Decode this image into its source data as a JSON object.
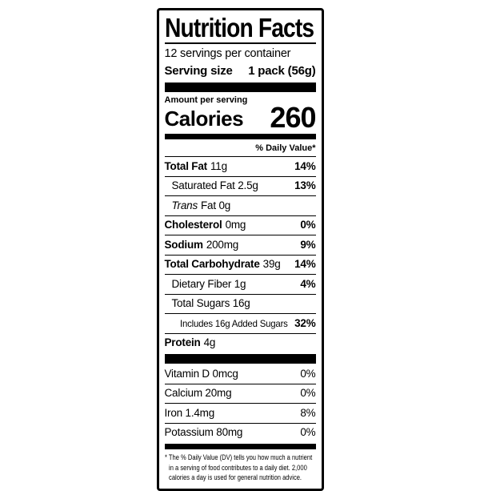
{
  "colors": {
    "ink": "#000000",
    "background": "#ffffff"
  },
  "label": {
    "title": "Nutrition Facts",
    "servings_per_container": "12 servings per container",
    "serving_size": {
      "label": "Serving size",
      "value": "1 pack (56g)"
    },
    "calories": {
      "heading": "Amount per serving",
      "label": "Calories",
      "value": "260"
    },
    "daily_value_header": "% Daily Value*",
    "nutrient_rows": [
      {
        "bold": "Total Fat",
        "reg": "11g",
        "dv": "14%"
      },
      {
        "reg": "Saturated Fat 2.5g",
        "dv": "13%"
      },
      {
        "italic": "Trans",
        "reg": "Fat 0g",
        "dv": ""
      },
      {
        "bold": "Cholesterol",
        "reg": "0mg",
        "dv": "0%"
      },
      {
        "bold": "Sodium",
        "reg": "200mg",
        "dv": "9%"
      },
      {
        "bold": "Total Carbohydrate",
        "reg": "39g",
        "dv": "14%"
      },
      {
        "reg": "Dietary Fiber 1g",
        "dv": "4%"
      },
      {
        "reg": "Total Sugars 16g",
        "dv": ""
      },
      {
        "reg": "Includes 16g Added Sugars",
        "dv": "32%"
      },
      {
        "bold": "Protein",
        "reg": "4g",
        "dv": ""
      }
    ],
    "vitamin_rows": [
      {
        "reg": "Vitamin D 0mcg",
        "dv": "0%"
      },
      {
        "reg": "Calcium 20mg",
        "dv": "0%"
      },
      {
        "reg": "Iron 1.4mg",
        "dv": "8%"
      },
      {
        "reg": "Potassium 80mg",
        "dv": "0%"
      }
    ],
    "footnote_lines": [
      "* The % Daily Value (DV) tells you how much a nutrient",
      "in a serving of food contributes to a daily diet. 2,000",
      "calories a day is used for general nutrition advice."
    ]
  }
}
